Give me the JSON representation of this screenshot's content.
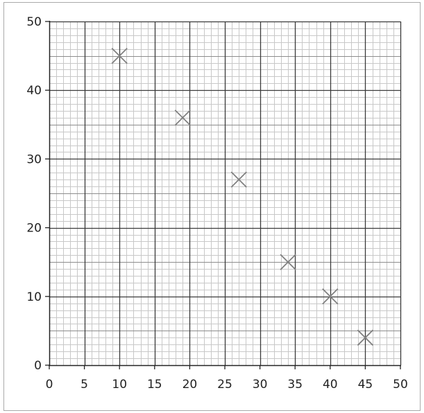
{
  "chart_data": {
    "type": "scatter",
    "title": "",
    "xlabel": "",
    "ylabel": "",
    "xlim": [
      0,
      50
    ],
    "ylim": [
      0,
      50
    ],
    "x_ticks": [
      "0",
      "5",
      "10",
      "15",
      "20",
      "25",
      "30",
      "35",
      "40",
      "45",
      "50"
    ],
    "y_ticks": [
      "0",
      "10",
      "20",
      "30",
      "40",
      "50"
    ],
    "grid": true,
    "marker": "x",
    "marker_color": "#808080",
    "points": [
      {
        "x": 10,
        "y": 45
      },
      {
        "x": 19,
        "y": 36
      },
      {
        "x": 27,
        "y": 27
      },
      {
        "x": 34,
        "y": 15
      },
      {
        "x": 40,
        "y": 10
      },
      {
        "x": 45,
        "y": 4
      }
    ]
  }
}
